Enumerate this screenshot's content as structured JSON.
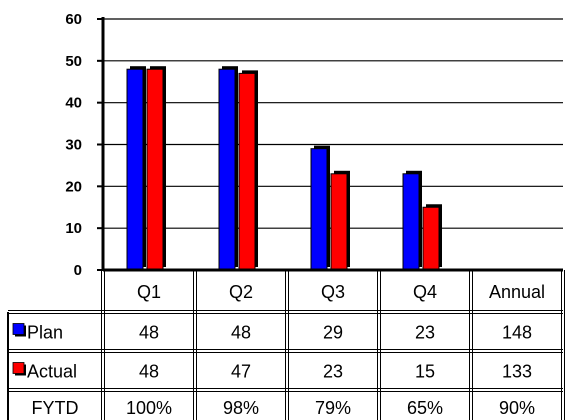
{
  "chart_data": {
    "type": "bar",
    "categories": [
      "Q1",
      "Q2",
      "Q3",
      "Q4"
    ],
    "table_columns": [
      "Q1",
      "Q2",
      "Q3",
      "Q4",
      "Annual"
    ],
    "series": [
      {
        "name": "Plan",
        "color": "#0000ff",
        "values": [
          48,
          48,
          29,
          23
        ],
        "table_values": [
          "48",
          "48",
          "29",
          "23",
          "148"
        ]
      },
      {
        "name": "Actual",
        "color": "#ff0000",
        "values": [
          48,
          47,
          23,
          15
        ],
        "table_values": [
          "48",
          "47",
          "23",
          "15",
          "133"
        ]
      }
    ],
    "extra_row": {
      "label": "FYTD",
      "values": [
        "100%",
        "98%",
        "79%",
        "65%",
        "90%"
      ]
    },
    "ylim": [
      0,
      60
    ],
    "yticks": [
      "0",
      "10",
      "20",
      "30",
      "40",
      "50",
      "60"
    ],
    "grid": true,
    "legend": "in data table"
  }
}
